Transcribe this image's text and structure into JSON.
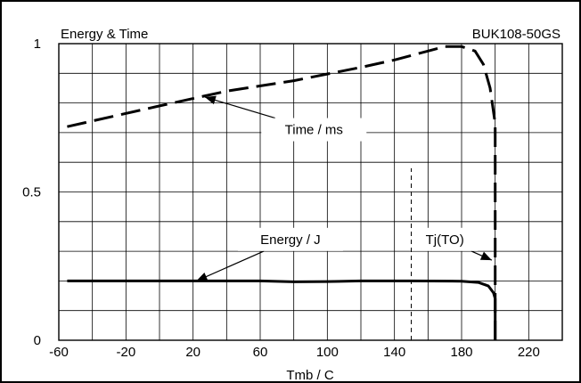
{
  "chart_data": {
    "type": "line",
    "title": "Energy & Time",
    "part_number": "BUK108-50GS",
    "xlabel": "Tmb / C",
    "ylabel": "",
    "xlim": [
      -60,
      240
    ],
    "ylim": [
      0,
      1
    ],
    "x_ticks": [
      -60,
      -20,
      20,
      60,
      100,
      140,
      180,
      220
    ],
    "x_tick_labels": [
      "-60",
      "-20",
      "20",
      "60",
      "100",
      "140",
      "180",
      "220"
    ],
    "y_ticks": [
      0,
      0.5,
      1
    ],
    "y_tick_labels": [
      "0",
      "0.5",
      "1"
    ],
    "x_grid_step": 20,
    "y_grid_step": 0.1,
    "grid": true,
    "series": [
      {
        "name": "Time / ms",
        "line_style": "dashed",
        "points": [
          [
            -55,
            0.72
          ],
          [
            0,
            0.79
          ],
          [
            40,
            0.84
          ],
          [
            80,
            0.875
          ],
          [
            120,
            0.92
          ],
          [
            140,
            0.945
          ],
          [
            160,
            0.975
          ],
          [
            170,
            0.99
          ],
          [
            180,
            0.99
          ],
          [
            188,
            0.975
          ],
          [
            193,
            0.93
          ],
          [
            197,
            0.85
          ],
          [
            200,
            0.73
          ],
          [
            200,
            0
          ]
        ]
      },
      {
        "name": "Energy / J",
        "line_style": "solid",
        "points": [
          [
            -55,
            0.2
          ],
          [
            60,
            0.2
          ],
          [
            80,
            0.197
          ],
          [
            100,
            0.198
          ],
          [
            120,
            0.2
          ],
          [
            150,
            0.2
          ],
          [
            180,
            0.199
          ],
          [
            190,
            0.195
          ],
          [
            196,
            0.183
          ],
          [
            199,
            0.16
          ],
          [
            200,
            0.14
          ],
          [
            200,
            0
          ]
        ]
      }
    ],
    "reference_line": {
      "label": "Tj(TO)",
      "x": 150,
      "y_range": [
        0,
        0.58
      ]
    },
    "annotations": [
      {
        "text": "Time / ms",
        "x": 92,
        "y": 0.71,
        "arrow_to": [
          27,
          0.82
        ]
      },
      {
        "text": "Energy / J",
        "x": 78,
        "y": 0.34,
        "arrow_to": [
          22,
          0.2
        ]
      },
      {
        "text": "Tj(TO)",
        "x": 170,
        "y": 0.34,
        "arrow_to": [
          198,
          0.27
        ]
      }
    ]
  }
}
